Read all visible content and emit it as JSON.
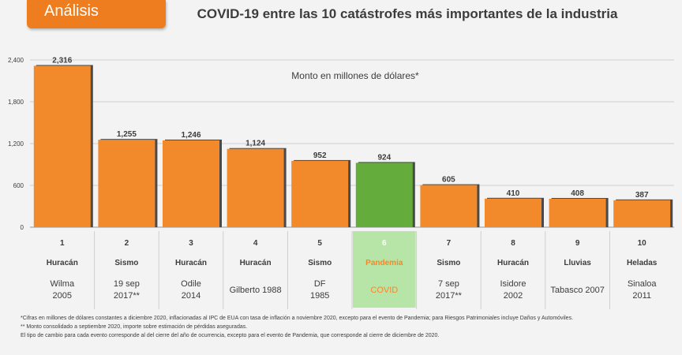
{
  "header": {
    "section_tab": "Análisis",
    "title": "COVID-19 entre las 10 catástrofes más importantes de la industria"
  },
  "colors": {
    "accent": "#ee7d1f",
    "bar": "#f2892a",
    "highlight_bar": "#64ac3c",
    "highlight_cell": "#b7e4a7",
    "highlight_text": "#f2892a"
  },
  "chart_data": {
    "type": "bar",
    "title": "COVID-19 entre las 10 catástrofes más importantes de la industria",
    "subtitle": "Monto en millones de dólares*",
    "ylim": [
      0,
      2400
    ],
    "yticks": [
      0,
      600,
      1200,
      1800,
      2400
    ],
    "ytick_labels": [
      "0",
      "600",
      "1,200",
      "1,800",
      "2,400"
    ],
    "grid": true,
    "highlight_index": 5,
    "categories": [
      "Wilma 2005",
      "19 sep 2017**",
      "Odile 2014",
      "Gilberto 1988",
      "DF 1985",
      "COVID",
      "7 sep 2017**",
      "Isidore 2002",
      "Tabasco 2007",
      "Sinaloa 2011"
    ],
    "values": [
      2316,
      1255,
      1246,
      1124,
      952,
      924,
      605,
      410,
      408,
      387
    ],
    "value_labels": [
      "2,316",
      "1,255",
      "1,246",
      "1,124",
      "952",
      "924",
      "605",
      "410",
      "408",
      "387"
    ],
    "table": [
      {
        "rank": "1",
        "type": "Huracán",
        "event_lines": [
          "Wilma",
          "2005"
        ]
      },
      {
        "rank": "2",
        "type": "Sismo",
        "event_lines": [
          "19 sep",
          "2017**"
        ]
      },
      {
        "rank": "3",
        "type": "Huracán",
        "event_lines": [
          "Odile",
          "2014"
        ]
      },
      {
        "rank": "4",
        "type": "Huracán",
        "event_lines": [
          "Gilberto 1988"
        ]
      },
      {
        "rank": "5",
        "type": "Sismo",
        "event_lines": [
          "DF",
          "1985"
        ]
      },
      {
        "rank": "6",
        "type": "Pandemia",
        "event_lines": [
          "COVID"
        ]
      },
      {
        "rank": "7",
        "type": "Sismo",
        "event_lines": [
          "7 sep",
          "2017**"
        ]
      },
      {
        "rank": "8",
        "type": "Huracán",
        "event_lines": [
          "Isidore",
          "2002"
        ]
      },
      {
        "rank": "9",
        "type": "Lluvias",
        "event_lines": [
          "Tabasco 2007"
        ]
      },
      {
        "rank": "10",
        "type": "Heladas",
        "event_lines": [
          "Sinaloa",
          "2011"
        ]
      }
    ]
  },
  "footnotes": [
    "*Cifras en millones de dólares constantes a diciembre 2020, inflacionadas al IPC de EUA con tasa de inflación a noviembre 2020, excepto para el evento de Pandemia; para Riesgos Patrimoniales incluye Daños y Automóviles.",
    "** Monto consolidado a septiembre 2020, importe sobre estimación de pérdidas aseguradas.",
    "El tipo de cambio para cada evento corresponde al del cierre del año de ocurrencia, excepto para el evento de Pandemia, que corresponde al cierre de diciembre de 2020."
  ]
}
